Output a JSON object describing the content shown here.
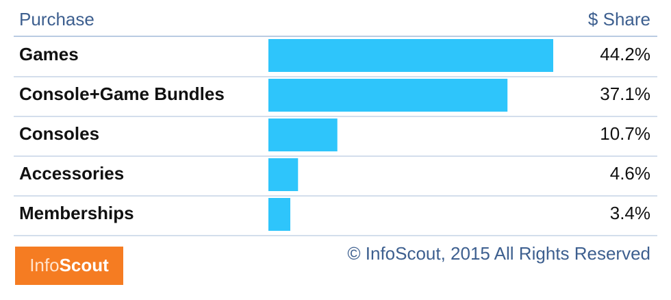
{
  "chart_data": {
    "type": "bar",
    "orientation": "horizontal",
    "column_headers": [
      "Purchase",
      "$ Share"
    ],
    "categories": [
      "Games",
      "Console+Game Bundles",
      "Consoles",
      "Accessories",
      "Memberships"
    ],
    "values": [
      44.2,
      37.1,
      10.7,
      4.6,
      3.4
    ],
    "value_labels": [
      "44.2%",
      "37.1%",
      "10.7%",
      "4.6%",
      "3.4%"
    ],
    "color": "#2ec5fb",
    "footer": {
      "logo": [
        "Info",
        "Scout"
      ],
      "copyright": "© InfoScout, 2015 All Rights Reserved"
    }
  }
}
